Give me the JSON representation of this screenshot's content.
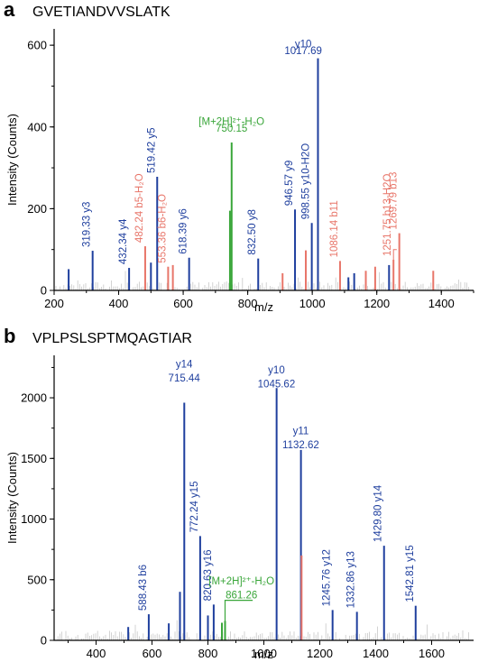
{
  "chart_data": [
    {
      "type": "bar",
      "panel_letter": "a",
      "title": "GVETIANDVVSLATK",
      "xlabel": "m/z",
      "ylabel": "Intensity (Counts)",
      "xlim": [
        200,
        1500
      ],
      "ylim": [
        0,
        640
      ],
      "xticks": [
        200,
        400,
        600,
        800,
        1000,
        1200,
        1400
      ],
      "yticks": [
        0,
        200,
        400,
        600
      ],
      "colors": {
        "y": "#1f3f9e",
        "b": "#e8766a",
        "precursor": "#3aa63a",
        "other": "#9a9a9a"
      },
      "peaks": [
        {
          "x": 245,
          "y": 52,
          "type": "y",
          "label": ""
        },
        {
          "x": 319.33,
          "y": 97,
          "type": "y",
          "label": "319.33 y3"
        },
        {
          "x": 432.34,
          "y": 55,
          "type": "y",
          "label": "432.34 y4"
        },
        {
          "x": 482.24,
          "y": 108,
          "type": "b",
          "label": "482.24 b5-H₂O"
        },
        {
          "x": 500,
          "y": 68,
          "type": "y",
          "label": ""
        },
        {
          "x": 519.42,
          "y": 278,
          "type": "y",
          "label": "519.42 y5"
        },
        {
          "x": 553.36,
          "y": 58,
          "type": "b",
          "label": "553.36 b6-H₂O"
        },
        {
          "x": 568,
          "y": 62,
          "type": "b",
          "label": ""
        },
        {
          "x": 618.39,
          "y": 80,
          "type": "y",
          "label": "618.39 y6"
        },
        {
          "x": 745,
          "y": 195,
          "type": "precursor",
          "label": ""
        },
        {
          "x": 750.15,
          "y": 362,
          "type": "precursor",
          "label": ""
        },
        {
          "x": 832.5,
          "y": 78,
          "type": "y",
          "label": "832.50 y8"
        },
        {
          "x": 908,
          "y": 42,
          "type": "b",
          "label": ""
        },
        {
          "x": 946.57,
          "y": 198,
          "type": "y",
          "label": "946.57 y9"
        },
        {
          "x": 980,
          "y": 98,
          "type": "b",
          "label": ""
        },
        {
          "x": 998.55,
          "y": 165,
          "type": "y",
          "label": "998.55 y10-H2O"
        },
        {
          "x": 1017.69,
          "y": 568,
          "type": "y",
          "label": ""
        },
        {
          "x": 1086.14,
          "y": 72,
          "type": "b",
          "label": "1086.14 b11"
        },
        {
          "x": 1112,
          "y": 32,
          "type": "y",
          "label": ""
        },
        {
          "x": 1130,
          "y": 42,
          "type": "y",
          "label": ""
        },
        {
          "x": 1166,
          "y": 48,
          "type": "b",
          "label": ""
        },
        {
          "x": 1195,
          "y": 58,
          "type": "b",
          "label": ""
        },
        {
          "x": 1238,
          "y": 62,
          "type": "y",
          "label": ""
        },
        {
          "x": 1251.75,
          "y": 75,
          "type": "b",
          "label": "1251.75 b13-H2O"
        },
        {
          "x": 1269.79,
          "y": 140,
          "type": "b",
          "label": "1269.79 b13"
        },
        {
          "x": 1375,
          "y": 48,
          "type": "b",
          "label": ""
        }
      ],
      "annotations": [
        {
          "text": "y10",
          "color": "y"
        },
        {
          "text": "1017.69",
          "color": "y"
        },
        {
          "text": "[M+2H]²⁺-H₂O",
          "color": "precursor"
        },
        {
          "text": "750.15",
          "color": "precursor"
        }
      ]
    },
    {
      "type": "bar",
      "panel_letter": "b",
      "title": "VPLPSLSPTMQAGTIAR",
      "xlabel": "m/z",
      "ylabel": "Intensity (Counts)",
      "xlim": [
        250,
        1750
      ],
      "ylim": [
        0,
        2350
      ],
      "xticks": [
        400,
        600,
        800,
        1000,
        1200,
        1400,
        1600
      ],
      "yticks": [
        0,
        500,
        1000,
        1500,
        2000
      ],
      "colors": {
        "y": "#1f3f9e",
        "b": "#e8766a",
        "precursor": "#3aa63a",
        "other": "#9a9a9a"
      },
      "peaks": [
        {
          "x": 515,
          "y": 110,
          "type": "y",
          "label": ""
        },
        {
          "x": 588.43,
          "y": 215,
          "type": "y",
          "label": "588.43 b6"
        },
        {
          "x": 660,
          "y": 140,
          "type": "y",
          "label": ""
        },
        {
          "x": 700,
          "y": 400,
          "type": "y",
          "label": ""
        },
        {
          "x": 715.44,
          "y": 1960,
          "type": "y",
          "label": ""
        },
        {
          "x": 772.24,
          "y": 860,
          "type": "y",
          "label": "772.24 y15"
        },
        {
          "x": 800,
          "y": 205,
          "type": "y",
          "label": ""
        },
        {
          "x": 820.63,
          "y": 295,
          "type": "y",
          "label": "820.63 y16"
        },
        {
          "x": 850,
          "y": 145,
          "type": "precursor",
          "label": ""
        },
        {
          "x": 861.26,
          "y": 160,
          "type": "precursor",
          "label": ""
        },
        {
          "x": 1045.62,
          "y": 2080,
          "type": "y",
          "label": ""
        },
        {
          "x": 1132.62,
          "y": 1570,
          "type": "y",
          "label": ""
        },
        {
          "x": 1135,
          "y": 700,
          "type": "b",
          "label": ""
        },
        {
          "x": 1245.76,
          "y": 250,
          "type": "y",
          "label": "1245.76 y12"
        },
        {
          "x": 1332.86,
          "y": 235,
          "type": "y",
          "label": "1332.86 y13"
        },
        {
          "x": 1429.8,
          "y": 780,
          "type": "y",
          "label": "1429.80 y14"
        },
        {
          "x": 1542.81,
          "y": 285,
          "type": "y",
          "label": "1542.81 y15"
        }
      ],
      "annotations": [
        {
          "text": "y14",
          "color": "y"
        },
        {
          "text": "715.44",
          "color": "y"
        },
        {
          "text": "y10",
          "color": "y"
        },
        {
          "text": "1045.62",
          "color": "y"
        },
        {
          "text": "y11",
          "color": "y"
        },
        {
          "text": "1132.62",
          "color": "y"
        },
        {
          "text": "[M+2H]²⁺-H₂O",
          "color": "precursor"
        },
        {
          "text": "861.26",
          "color": "precursor"
        }
      ]
    }
  ]
}
